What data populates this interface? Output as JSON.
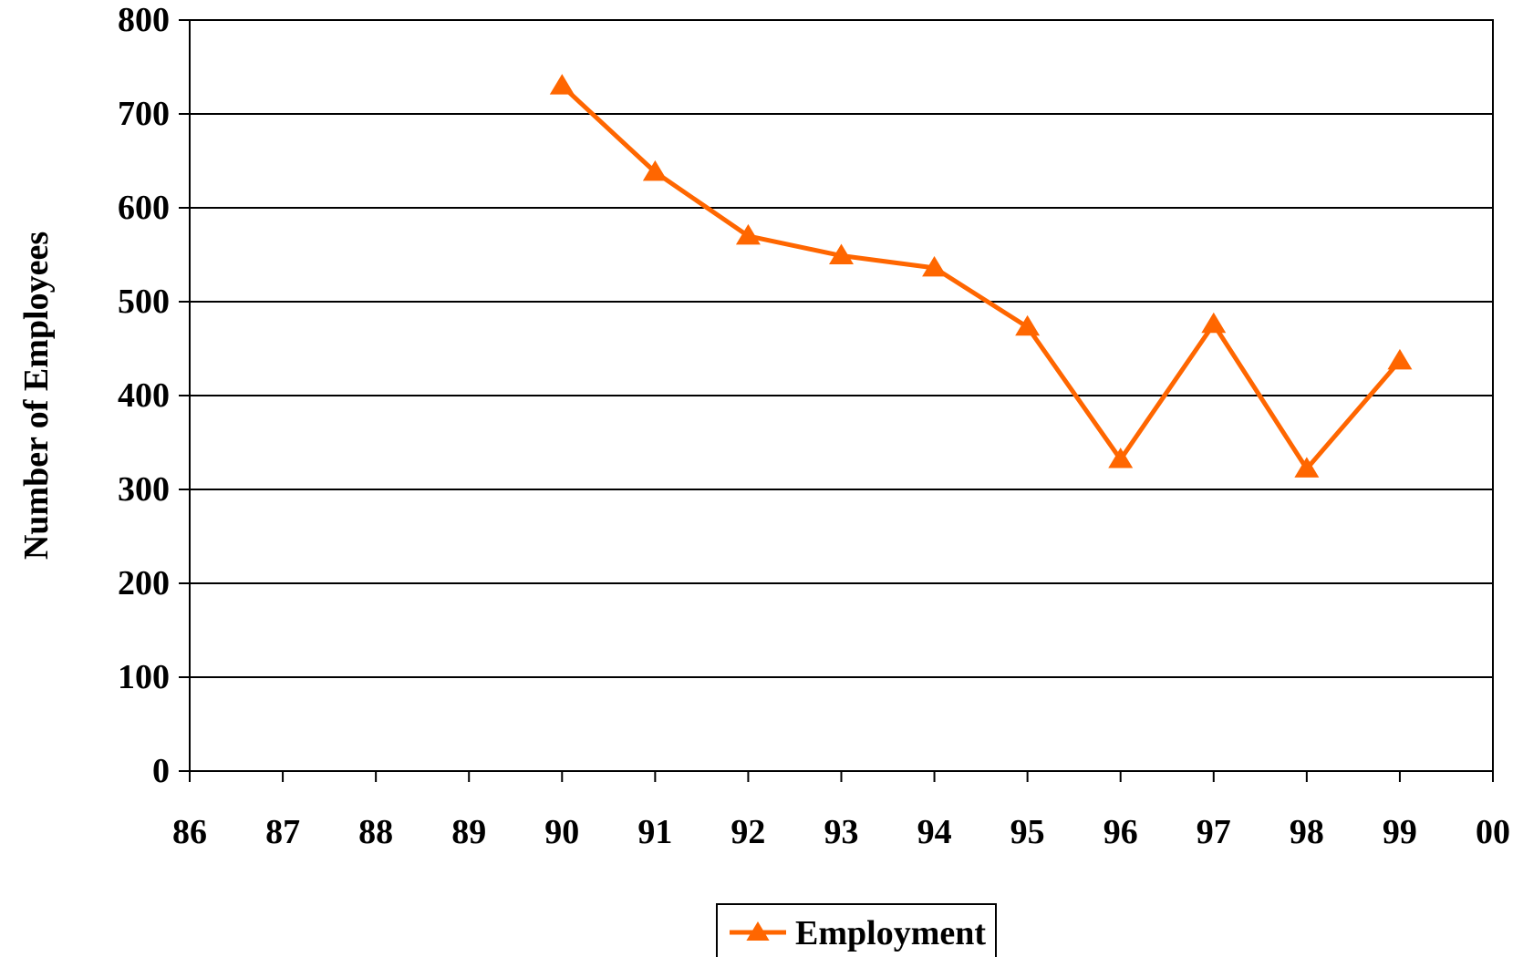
{
  "chart_data": {
    "type": "line",
    "title": "",
    "xlabel": "",
    "ylabel": "Number of Employees",
    "x_ticks": [
      "86",
      "87",
      "88",
      "89",
      "90",
      "91",
      "92",
      "93",
      "94",
      "95",
      "96",
      "97",
      "98",
      "99",
      "00"
    ],
    "y_ticks": [
      0,
      100,
      200,
      300,
      400,
      500,
      600,
      700,
      800
    ],
    "ylim": [
      0,
      800
    ],
    "grid": true,
    "legend_position": "bottom-center",
    "series": [
      {
        "name": "Employment",
        "color": "#FF6600",
        "marker": "triangle",
        "x": [
          "90",
          "91",
          "92",
          "93",
          "94",
          "95",
          "96",
          "97",
          "98",
          "99"
        ],
        "values": [
          730,
          638,
          570,
          549,
          536,
          473,
          332,
          476,
          322,
          437
        ]
      }
    ]
  }
}
